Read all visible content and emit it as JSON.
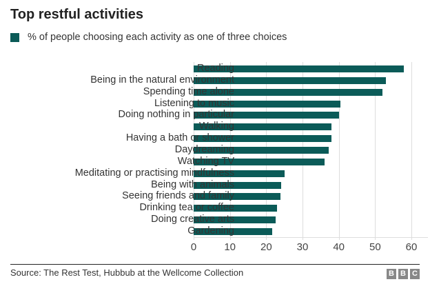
{
  "title": "Top restful activities",
  "legend": {
    "label": "% of people choosing each activity as one of three choices",
    "color": "#0b5b58"
  },
  "source": "Source: The Rest Test, Hubbub at the Wellcome Collection",
  "logo": [
    "B",
    "B",
    "C"
  ],
  "chart_data": {
    "type": "bar",
    "orientation": "horizontal",
    "title": "Top restful activities",
    "xlabel": "",
    "ylabel": "",
    "xlim": [
      0,
      60
    ],
    "xticks": [
      0,
      10,
      20,
      30,
      40,
      50,
      60
    ],
    "grid": true,
    "legend": [
      "% of people choosing each activity as one of three choices"
    ],
    "legend_position": "top-left",
    "categories": [
      "Reading",
      "Being in the natural environment",
      "Spending time alone",
      "Listening to music",
      "Doing nothing in particular",
      "Walking",
      "Having a bath or shower",
      "Daydreaming",
      "Watching TV",
      "Meditating or practising mindfulness",
      "Being with animals",
      "Seeing friends and family",
      "Drinking tea or coffee",
      "Doing creative arts",
      "Gardening"
    ],
    "values": [
      58,
      53,
      52,
      40.5,
      40,
      38,
      38,
      37.3,
      36,
      25,
      24.2,
      24,
      23,
      22.5,
      21.6
    ],
    "color": "#0b5b58"
  }
}
